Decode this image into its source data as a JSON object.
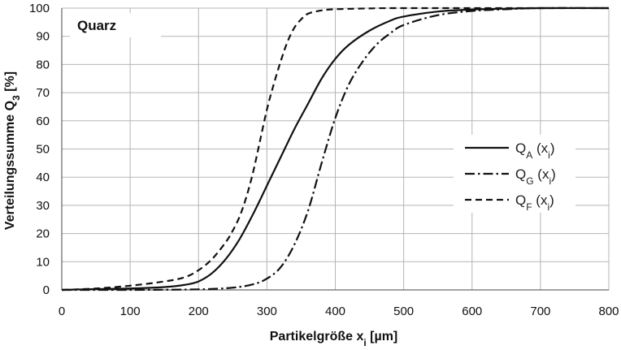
{
  "chart_data": {
    "type": "line",
    "panel_label": "Quarz",
    "xlabel": {
      "main": "Partikelgröße x",
      "sub": "i",
      "unit": " [µm]"
    },
    "ylabel": {
      "main": "Verteilungssumme Q",
      "sub": "3",
      "unit": " [%]"
    },
    "xlim": [
      0,
      800
    ],
    "ylim": [
      0,
      100
    ],
    "x_ticks": [
      0,
      100,
      200,
      300,
      400,
      500,
      600,
      700,
      800
    ],
    "y_ticks": [
      0,
      10,
      20,
      30,
      40,
      50,
      60,
      70,
      80,
      90,
      100
    ],
    "grid": true,
    "legend_position": "right",
    "series": [
      {
        "name": "QA (xi)",
        "label_main": "Q",
        "label_sub": "A",
        "label_arg": " (x",
        "label_arg_sub": "i",
        "label_close": ")",
        "dash": "solid",
        "x": [
          0,
          50,
          100,
          150,
          180,
          200,
          220,
          240,
          260,
          280,
          300,
          320,
          340,
          360,
          380,
          400,
          420,
          450,
          480,
          500,
          550,
          600,
          650,
          700,
          800
        ],
        "y": [
          0,
          0.3,
          0.5,
          1.0,
          1.8,
          3.0,
          6.0,
          11.0,
          18.0,
          27.0,
          37.0,
          47.0,
          57.0,
          66.0,
          75.0,
          82.0,
          87.0,
          92.0,
          95.5,
          97.0,
          98.8,
          99.5,
          99.8,
          100,
          100
        ]
      },
      {
        "name": "QG (xi)",
        "label_main": "Q",
        "label_sub": "G",
        "label_arg": " (x",
        "label_arg_sub": "i",
        "label_close": ")",
        "dash": "dashdot",
        "x": [
          0,
          100,
          200,
          250,
          280,
          300,
          320,
          340,
          360,
          380,
          400,
          420,
          440,
          460,
          480,
          500,
          550,
          600,
          650,
          700,
          800
        ],
        "y": [
          0,
          0,
          0.2,
          0.8,
          2.0,
          4.0,
          8.0,
          16.0,
          28.0,
          45.0,
          61.0,
          73.0,
          81.0,
          87.0,
          91.0,
          94.0,
          97.5,
          99.0,
          99.6,
          100,
          100
        ]
      },
      {
        "name": "QF (xi)",
        "label_main": "Q",
        "label_sub": "F",
        "label_arg": " (x",
        "label_arg_sub": "i",
        "label_close": ")",
        "dash": "dashed",
        "x": [
          0,
          50,
          100,
          150,
          180,
          200,
          220,
          240,
          250,
          260,
          270,
          280,
          290,
          300,
          310,
          320,
          330,
          340,
          350,
          360,
          380,
          400,
          450,
          500,
          800
        ],
        "y": [
          0,
          0.5,
          1.5,
          3.0,
          4.5,
          7.0,
          11.0,
          17.0,
          21.0,
          26.0,
          33.0,
          42.0,
          53.0,
          64.0,
          73.0,
          81.0,
          88.0,
          93.0,
          96.0,
          98.0,
          99.2,
          99.6,
          99.9,
          100,
          100
        ]
      }
    ]
  }
}
